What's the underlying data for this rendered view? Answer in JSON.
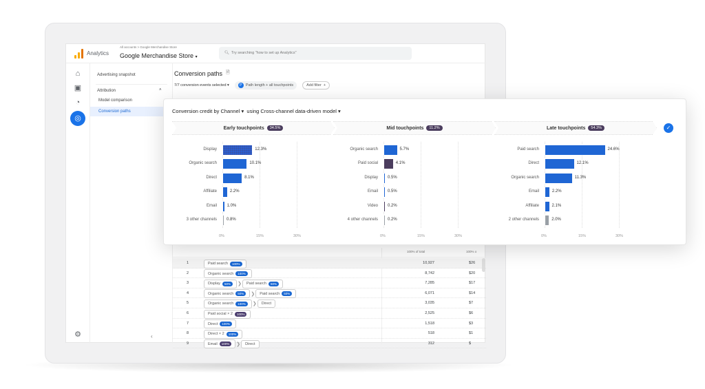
{
  "topbar": {
    "app": "Analytics",
    "breadcrumb": "All accounts > Google Merchandise Store",
    "property": "Google Merchandise Store",
    "search_placeholder": "Try searching \"how to set up Analytics\""
  },
  "nav": {
    "items": [
      {
        "label": "Advertising snapshot"
      },
      {
        "label": "Attribution"
      },
      {
        "label": "Model comparison"
      },
      {
        "label": "Conversion paths",
        "active": true
      }
    ]
  },
  "main": {
    "title": "Conversion paths",
    "events": "7/7 conversion events selected",
    "filter_chip": "Path length + all touchpoints",
    "filter_avatar": "P",
    "add_filter": "Add filter"
  },
  "card": {
    "title_dim": "Conversion credit by Channel",
    "title_model": "using Cross-channel data-driven model"
  },
  "colors": {
    "blue": "#1f66d4",
    "purple": "#4b3d5e",
    "grey": "#9aa0a6"
  },
  "chart_data": {
    "type": "bar",
    "orientation": "horizontal",
    "xlim": [
      0,
      30
    ],
    "ticks": [
      "0%",
      "15%",
      "30%"
    ],
    "panels": [
      {
        "title": "Early touchpoints",
        "badge": "34.5%",
        "categories": [
          "Display",
          "Organic search",
          "Direct",
          "Affiliate",
          "Email",
          "3 other channels"
        ],
        "values": [
          12.3,
          10.1,
          8.1,
          2.2,
          1.0,
          0.8
        ],
        "labels": [
          "12.3%",
          "10.1%",
          "8.1%",
          "2.2%",
          "1.0%",
          "0.8%"
        ],
        "colors": [
          "blue",
          "blue",
          "blue",
          "blue",
          "blue",
          "grey"
        ]
      },
      {
        "title": "Mid touchpoints",
        "badge": "11.2%",
        "categories": [
          "Organic search",
          "Paid social",
          "Display",
          "Email",
          "Video",
          "4 other channels"
        ],
        "values": [
          5.7,
          4.1,
          0.5,
          0.5,
          0.2,
          0.2
        ],
        "labels": [
          "5.7%",
          "4.1%",
          "0.5%",
          "0.5%",
          "0.2%",
          "0.2%"
        ],
        "colors": [
          "blue",
          "purple",
          "blue",
          "blue",
          "purple",
          "grey"
        ]
      },
      {
        "title": "Late touchpoints",
        "badge": "54.3%",
        "categories": [
          "Paid search",
          "Direct",
          "Organic search",
          "Email",
          "Affiliate",
          "2 other channels"
        ],
        "values": [
          24.6,
          12.1,
          11.3,
          2.2,
          2.1,
          2.0
        ],
        "labels": [
          "24.6%",
          "12.1%",
          "11.3%",
          "2.2%",
          "2.1%",
          "2.0%"
        ],
        "colors": [
          "blue",
          "blue",
          "blue",
          "blue",
          "blue",
          "grey"
        ]
      }
    ]
  },
  "table": {
    "col_conversions": "100% of total",
    "col_revenue": "100% o",
    "rows": [
      {
        "n": "1",
        "path": [
          [
            "Paid search",
            "100%",
            "b"
          ]
        ],
        "conv": "10,927",
        "rev": "$26"
      },
      {
        "n": "2",
        "path": [
          [
            "Organic search",
            "100%",
            "b"
          ]
        ],
        "conv": "8,742",
        "rev": "$20"
      },
      {
        "n": "3",
        "path": [
          [
            "Display",
            "50%",
            "b"
          ],
          [
            "Paid search",
            "50%",
            "b"
          ]
        ],
        "conv": "7,285",
        "rev": "$17"
      },
      {
        "n": "4",
        "path": [
          [
            "Organic search",
            "50%",
            "b"
          ],
          [
            "Paid search",
            "50%",
            "b"
          ]
        ],
        "conv": "6,071",
        "rev": "$14"
      },
      {
        "n": "5",
        "path": [
          [
            "Organic search",
            "100%",
            "b"
          ],
          [
            "Direct",
            "",
            ""
          ]
        ],
        "conv": "3,035",
        "rev": "$7"
      },
      {
        "n": "6",
        "path": [
          [
            "Paid social × 2",
            "100%",
            "p"
          ]
        ],
        "conv": "2,525",
        "rev": "$6"
      },
      {
        "n": "7",
        "path": [
          [
            "Direct",
            "100%",
            "b"
          ]
        ],
        "conv": "1,518",
        "rev": "$3"
      },
      {
        "n": "8",
        "path": [
          [
            "Direct × 2",
            "100%",
            "b"
          ]
        ],
        "conv": "518",
        "rev": "$1"
      },
      {
        "n": "9",
        "path": [
          [
            "Email",
            "100%",
            "p"
          ],
          [
            "Direct",
            "",
            ""
          ]
        ],
        "conv": "312",
        "rev": "$"
      }
    ]
  }
}
